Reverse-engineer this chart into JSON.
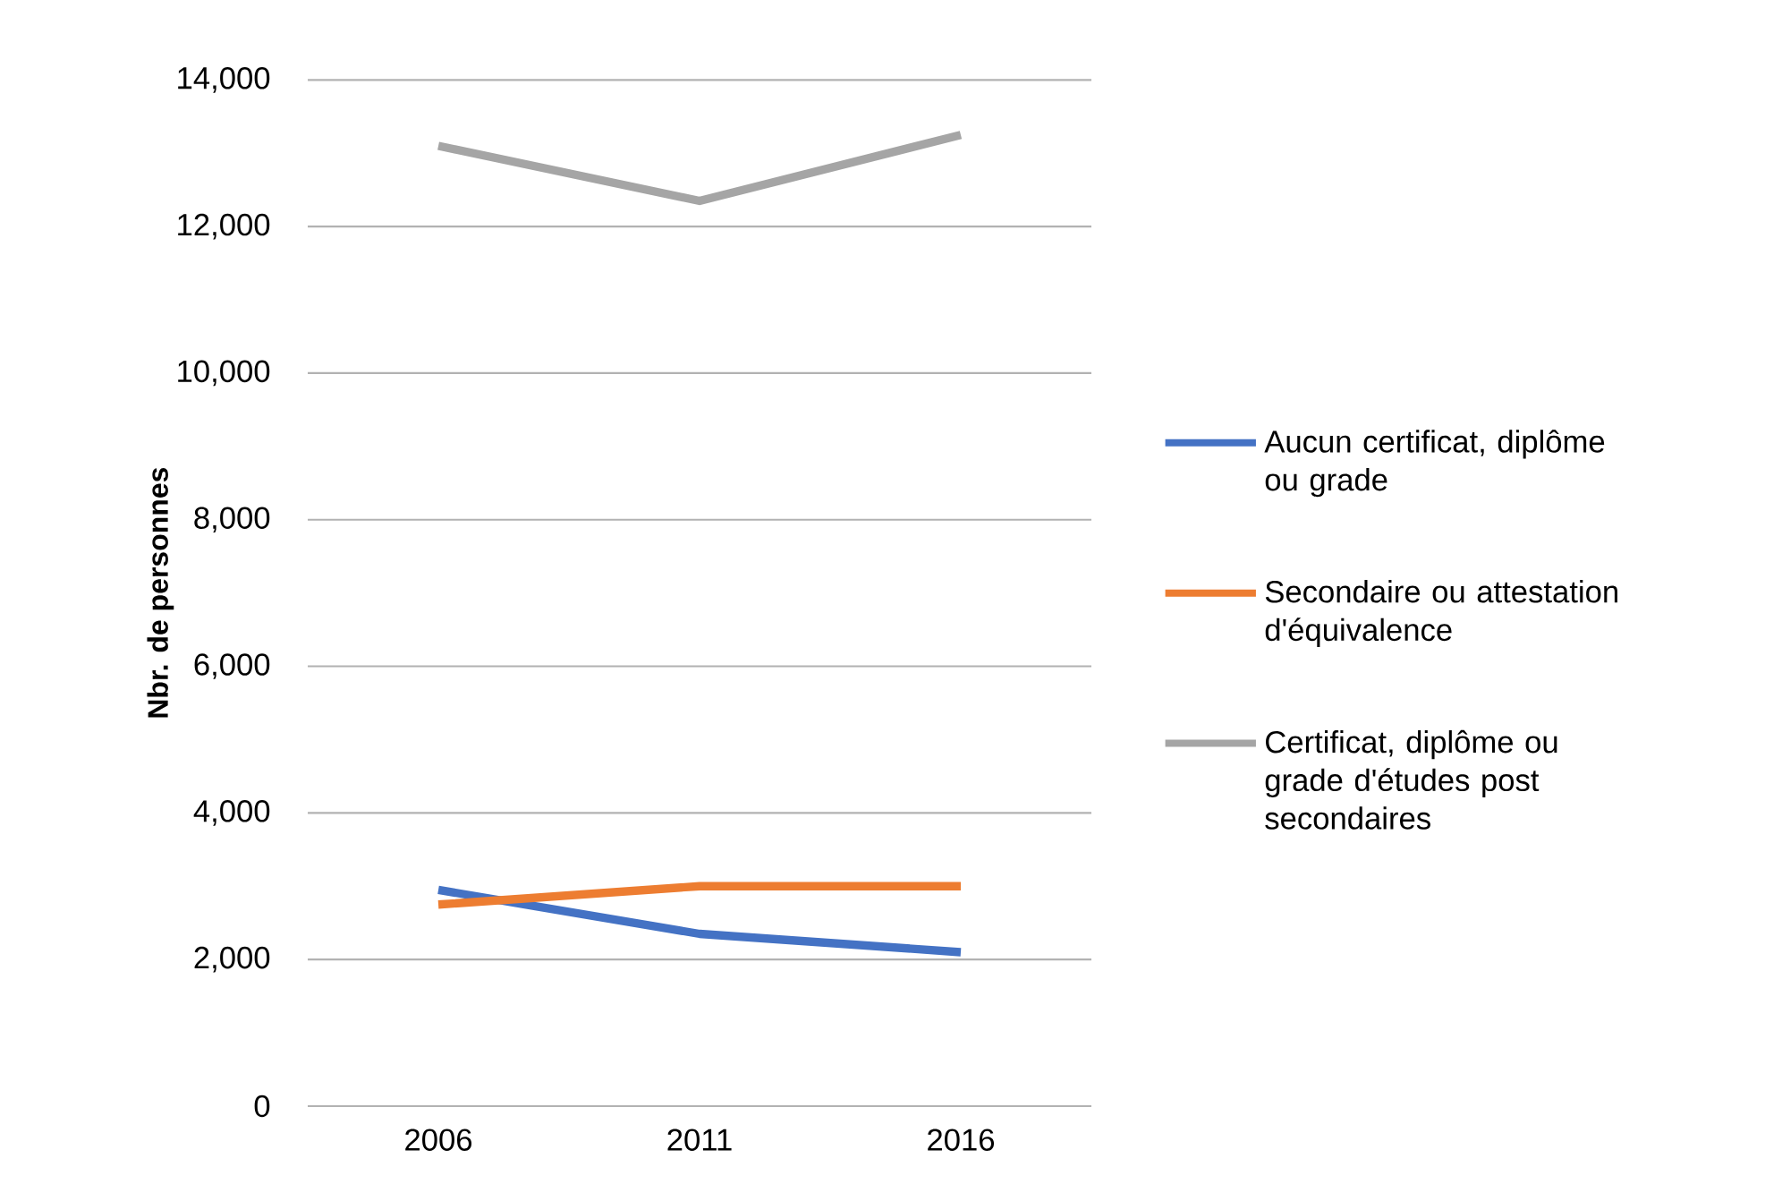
{
  "chart_data": {
    "type": "line",
    "ylabel": "Nbr. de personnes",
    "categories": [
      "2006",
      "2011",
      "2016"
    ],
    "series": [
      {
        "name": "Aucun certificat, diplôme ou grade",
        "color": "#4472c4",
        "values": [
          2950,
          2350,
          2100
        ]
      },
      {
        "name": "Secondaire ou attestation d'équivalence",
        "color": "#ed7d31",
        "values": [
          2750,
          3000,
          3000
        ]
      },
      {
        "name": "Certificat, diplôme ou grade d'études post secondaires",
        "color": "#a5a5a5",
        "values": [
          13100,
          12350,
          13250
        ]
      }
    ],
    "ylim": [
      0,
      14000
    ],
    "yticks": [
      0,
      {
        "value": 2000,
        "label": "2,000"
      },
      {
        "value": 4000,
        "label": "4,000"
      },
      {
        "value": 6000,
        "label": "6,000"
      },
      {
        "value": 8000,
        "label": "8,000"
      },
      {
        "value": 10000,
        "label": "10,000"
      },
      {
        "value": 12000,
        "label": "12,000"
      },
      {
        "value": 14000,
        "label": "14,000"
      }
    ],
    "grid": "y",
    "legend": "right",
    "marker": "none",
    "line_style": "solid"
  }
}
